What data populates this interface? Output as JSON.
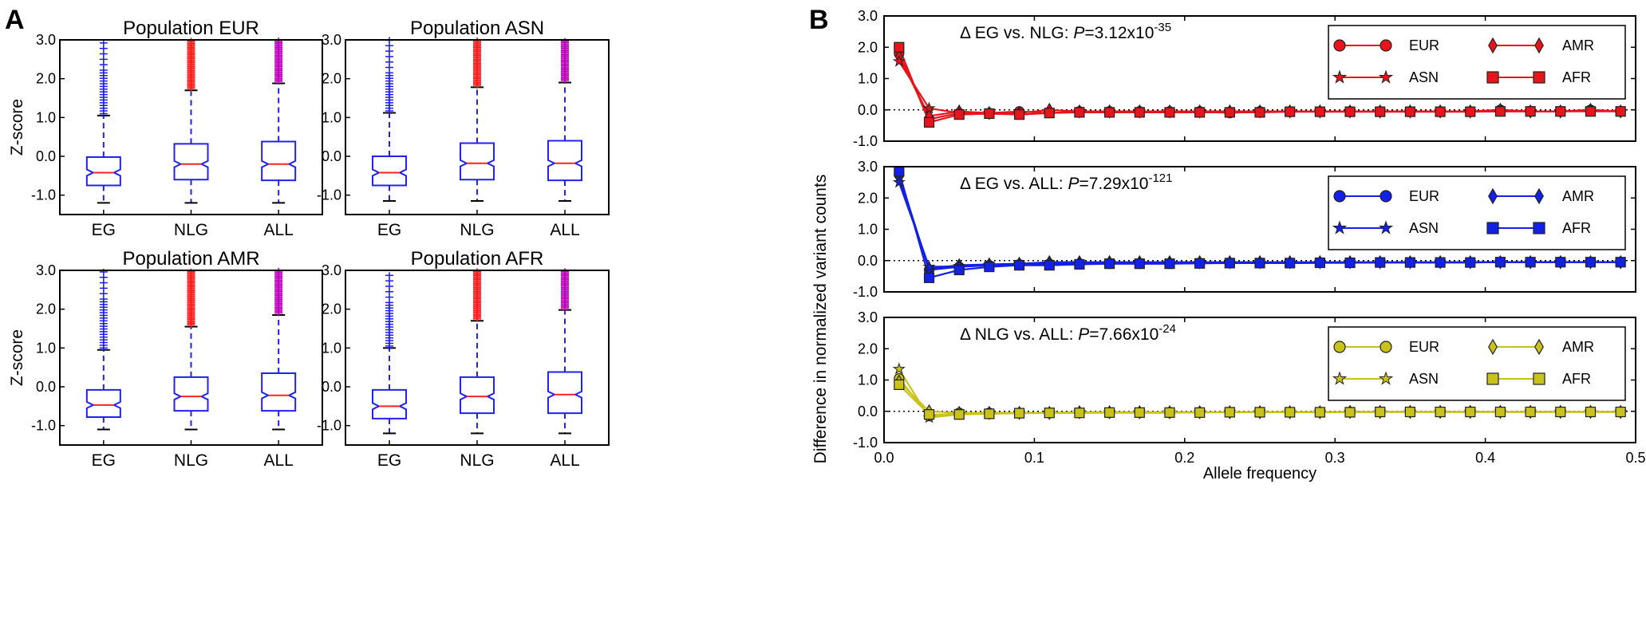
{
  "panel_labels": {
    "a": "A",
    "b": "B"
  },
  "colors": {
    "eg": "#1a1aff",
    "nlg": "#ff1a1a",
    "all": "#bf00bf",
    "box": "#2222ee",
    "median": "#ff2222",
    "cap": "#000000",
    "red": "#e8141b",
    "blue": "#1320e6",
    "yellow": "#c9c21a"
  },
  "chart_data": [
    {
      "type": "box",
      "title": "Population EUR",
      "ylabel": "Z-score",
      "categories": [
        "EG",
        "NLG",
        "ALL"
      ],
      "ylim": [
        -1.5,
        3.0
      ],
      "yticks": [
        "-1.0",
        "0.0",
        "1.0",
        "2.0",
        "3.0"
      ],
      "boxes": [
        {
          "label": "EG",
          "whisker_low": -1.2,
          "q1": -0.75,
          "median": -0.42,
          "q3": -0.02,
          "whisker_high": 1.05,
          "outliers_from": 1.05
        },
        {
          "label": "NLG",
          "whisker_low": -1.2,
          "q1": -0.6,
          "median": -0.2,
          "q3": 0.32,
          "whisker_high": 1.7,
          "outliers_from": 1.7
        },
        {
          "label": "ALL",
          "whisker_low": -1.2,
          "q1": -0.62,
          "median": -0.2,
          "q3": 0.38,
          "whisker_high": 1.88,
          "outliers_from": 1.88
        }
      ]
    },
    {
      "type": "box",
      "title": "Population ASN",
      "ylabel": "",
      "categories": [
        "EG",
        "NLG",
        "ALL"
      ],
      "ylim": [
        -1.5,
        3.0
      ],
      "yticks": [
        "-1.0",
        "0.0",
        "1.0",
        "2.0",
        "3.0"
      ],
      "boxes": [
        {
          "label": "EG",
          "whisker_low": -1.15,
          "q1": -0.75,
          "median": -0.42,
          "q3": 0.0,
          "whisker_high": 1.12,
          "outliers_from": 1.12
        },
        {
          "label": "NLG",
          "whisker_low": -1.15,
          "q1": -0.6,
          "median": -0.18,
          "q3": 0.34,
          "whisker_high": 1.78,
          "outliers_from": 1.78
        },
        {
          "label": "ALL",
          "whisker_low": -1.15,
          "q1": -0.62,
          "median": -0.18,
          "q3": 0.4,
          "whisker_high": 1.9,
          "outliers_from": 1.9
        }
      ]
    },
    {
      "type": "box",
      "title": "Population AMR",
      "ylabel": "Z-score",
      "categories": [
        "EG",
        "NLG",
        "ALL"
      ],
      "ylim": [
        -1.5,
        3.0
      ],
      "yticks": [
        "-1.0",
        "0.0",
        "1.0",
        "2.0",
        "3.0"
      ],
      "boxes": [
        {
          "label": "EG",
          "whisker_low": -1.1,
          "q1": -0.78,
          "median": -0.47,
          "q3": -0.08,
          "whisker_high": 0.95,
          "outliers_from": 0.95
        },
        {
          "label": "NLG",
          "whisker_low": -1.1,
          "q1": -0.62,
          "median": -0.25,
          "q3": 0.25,
          "whisker_high": 1.55,
          "outliers_from": 1.55
        },
        {
          "label": "ALL",
          "whisker_low": -1.1,
          "q1": -0.62,
          "median": -0.22,
          "q3": 0.35,
          "whisker_high": 1.85,
          "outliers_from": 1.85
        }
      ]
    },
    {
      "type": "box",
      "title": "Population AFR",
      "ylabel": "",
      "categories": [
        "EG",
        "NLG",
        "ALL"
      ],
      "ylim": [
        -1.5,
        3.0
      ],
      "yticks": [
        "-1.0",
        "0.0",
        "1.0",
        "2.0",
        "3.0"
      ],
      "boxes": [
        {
          "label": "EG",
          "whisker_low": -1.2,
          "q1": -0.82,
          "median": -0.5,
          "q3": -0.08,
          "whisker_high": 1.0,
          "outliers_from": 1.0
        },
        {
          "label": "NLG",
          "whisker_low": -1.2,
          "q1": -0.68,
          "median": -0.25,
          "q3": 0.25,
          "whisker_high": 1.7,
          "outliers_from": 1.7
        },
        {
          "label": "ALL",
          "whisker_low": -1.2,
          "q1": -0.68,
          "median": -0.2,
          "q3": 0.38,
          "whisker_high": 1.98,
          "outliers_from": 1.98
        }
      ]
    },
    {
      "type": "line",
      "annotation_prefix": "Δ EG vs. NLG: ",
      "annotation_p": "P",
      "annotation_value": "=3.12x10",
      "annotation_exp": "-35",
      "color_key": "red",
      "ylim": [
        -1.0,
        3.0
      ],
      "yticks": [
        "-1.0",
        "0.0",
        "1.0",
        "2.0",
        "3.0"
      ],
      "legend": [
        "EUR",
        "AMR",
        "ASN",
        "AFR"
      ],
      "x": [
        0.01,
        0.03,
        0.05,
        0.07,
        0.09,
        0.11,
        0.13,
        0.15,
        0.17,
        0.19,
        0.21,
        0.23,
        0.25,
        0.27,
        0.29,
        0.31,
        0.33,
        0.35,
        0.37,
        0.39,
        0.41,
        0.43,
        0.45,
        0.47,
        0.49
      ],
      "series": [
        {
          "name": "EUR",
          "marker": "circle",
          "values": [
            1.8,
            -0.3,
            -0.1,
            -0.1,
            -0.05,
            -0.1,
            -0.05,
            -0.05,
            -0.05,
            -0.05,
            -0.05,
            -0.1,
            -0.05,
            -0.05,
            -0.05,
            -0.05,
            -0.05,
            -0.05,
            -0.05,
            -0.05,
            0.0,
            -0.05,
            -0.05,
            0.0,
            -0.05
          ]
        },
        {
          "name": "AMR",
          "marker": "diamond",
          "values": [
            1.7,
            -0.2,
            -0.05,
            -0.1,
            -0.1,
            0.0,
            -0.05,
            -0.05,
            -0.05,
            -0.05,
            -0.05,
            -0.05,
            -0.05,
            -0.05,
            -0.05,
            -0.05,
            -0.05,
            -0.05,
            -0.05,
            -0.05,
            0.0,
            -0.05,
            -0.05,
            0.0,
            -0.05
          ]
        },
        {
          "name": "ASN",
          "marker": "star",
          "values": [
            1.55,
            0.05,
            -0.1,
            -0.1,
            -0.15,
            -0.1,
            -0.05,
            -0.05,
            -0.05,
            -0.05,
            -0.05,
            -0.05,
            -0.05,
            -0.05,
            -0.05,
            -0.05,
            -0.05,
            -0.05,
            -0.05,
            -0.05,
            -0.05,
            -0.05,
            -0.05,
            0.0,
            -0.05
          ]
        },
        {
          "name": "AFR",
          "marker": "square",
          "values": [
            2.0,
            -0.4,
            -0.15,
            -0.12,
            -0.15,
            -0.1,
            -0.08,
            -0.08,
            -0.08,
            -0.08,
            -0.08,
            -0.08,
            -0.08,
            -0.06,
            -0.06,
            -0.06,
            -0.06,
            -0.06,
            -0.06,
            -0.06,
            -0.05,
            -0.05,
            -0.05,
            -0.05,
            -0.05
          ]
        }
      ]
    },
    {
      "type": "line",
      "annotation_prefix": "Δ EG vs. ALL:  ",
      "annotation_p": "P",
      "annotation_value": "=7.29x10",
      "annotation_exp": "-121",
      "color_key": "blue",
      "ylim": [
        -1.0,
        3.0
      ],
      "yticks": [
        "-1.0",
        "0.0",
        "1.0",
        "2.0",
        "3.0"
      ],
      "legend": [
        "EUR",
        "AMR",
        "ASN",
        "AFR"
      ],
      "x": [
        0.01,
        0.03,
        0.05,
        0.07,
        0.09,
        0.11,
        0.13,
        0.15,
        0.17,
        0.19,
        0.21,
        0.23,
        0.25,
        0.27,
        0.29,
        0.31,
        0.33,
        0.35,
        0.37,
        0.39,
        0.41,
        0.43,
        0.45,
        0.47,
        0.49
      ],
      "series": [
        {
          "name": "EUR",
          "marker": "circle",
          "values": [
            2.75,
            -0.3,
            -0.2,
            -0.15,
            -0.12,
            -0.1,
            -0.1,
            -0.1,
            -0.1,
            -0.1,
            -0.08,
            -0.08,
            -0.08,
            -0.08,
            -0.07,
            -0.07,
            -0.06,
            -0.06,
            -0.06,
            -0.06,
            -0.05,
            -0.05,
            -0.05,
            -0.05,
            -0.05
          ]
        },
        {
          "name": "AMR",
          "marker": "diamond",
          "values": [
            2.65,
            -0.25,
            -0.15,
            -0.12,
            -0.1,
            -0.05,
            -0.05,
            -0.05,
            -0.05,
            -0.05,
            -0.05,
            -0.05,
            -0.05,
            -0.05,
            -0.05,
            -0.05,
            -0.05,
            -0.05,
            -0.05,
            -0.05,
            -0.05,
            -0.05,
            -0.05,
            -0.05,
            -0.05
          ]
        },
        {
          "name": "ASN",
          "marker": "star",
          "values": [
            2.5,
            -0.2,
            -0.18,
            -0.15,
            -0.12,
            -0.1,
            -0.08,
            -0.08,
            -0.08,
            -0.08,
            -0.08,
            -0.08,
            -0.08,
            -0.07,
            -0.07,
            -0.06,
            -0.06,
            -0.06,
            -0.06,
            -0.05,
            -0.05,
            -0.05,
            -0.05,
            -0.05,
            -0.05
          ]
        },
        {
          "name": "AFR",
          "marker": "square",
          "values": [
            2.85,
            -0.55,
            -0.3,
            -0.2,
            -0.15,
            -0.15,
            -0.12,
            -0.1,
            -0.1,
            -0.1,
            -0.09,
            -0.08,
            -0.08,
            -0.08,
            -0.07,
            -0.07,
            -0.06,
            -0.06,
            -0.06,
            -0.06,
            -0.05,
            -0.05,
            -0.05,
            -0.05,
            -0.05
          ]
        }
      ]
    },
    {
      "type": "line",
      "annotation_prefix": "Δ NLG vs. ALL: ",
      "annotation_p": "P",
      "annotation_value": "=7.66x10",
      "annotation_exp": "-24",
      "color_key": "yellow",
      "ylim": [
        -1.0,
        3.0
      ],
      "yticks": [
        "-1.0",
        "0.0",
        "1.0",
        "2.0",
        "3.0"
      ],
      "legend": [
        "EUR",
        "AMR",
        "ASN",
        "AFR"
      ],
      "xlabel": "Allele frequency",
      "xticks": [
        "0.0",
        "0.1",
        "0.2",
        "0.3",
        "0.4",
        "0.5"
      ],
      "x": [
        0.01,
        0.03,
        0.05,
        0.07,
        0.09,
        0.11,
        0.13,
        0.15,
        0.17,
        0.19,
        0.21,
        0.23,
        0.25,
        0.27,
        0.29,
        0.31,
        0.33,
        0.35,
        0.37,
        0.39,
        0.41,
        0.43,
        0.45,
        0.47,
        0.49
      ],
      "series": [
        {
          "name": "EUR",
          "marker": "circle",
          "values": [
            1.05,
            -0.15,
            -0.05,
            -0.05,
            -0.05,
            -0.05,
            -0.05,
            -0.05,
            -0.05,
            -0.05,
            -0.03,
            -0.03,
            -0.03,
            -0.03,
            -0.03,
            -0.02,
            -0.02,
            -0.02,
            -0.02,
            -0.02,
            -0.02,
            -0.02,
            -0.02,
            -0.02,
            -0.02
          ]
        },
        {
          "name": "AMR",
          "marker": "diamond",
          "values": [
            0.95,
            0.0,
            -0.05,
            -0.05,
            -0.05,
            -0.05,
            -0.03,
            -0.03,
            -0.03,
            -0.03,
            -0.03,
            -0.03,
            -0.03,
            -0.03,
            -0.03,
            -0.02,
            -0.02,
            -0.02,
            -0.02,
            -0.02,
            -0.02,
            -0.02,
            -0.02,
            -0.02,
            -0.02
          ]
        },
        {
          "name": "ASN",
          "marker": "star",
          "values": [
            1.35,
            -0.2,
            -0.1,
            -0.05,
            -0.05,
            -0.05,
            -0.03,
            -0.03,
            -0.03,
            -0.03,
            -0.03,
            -0.02,
            -0.02,
            -0.02,
            -0.02,
            -0.02,
            -0.02,
            -0.02,
            -0.02,
            -0.02,
            -0.02,
            -0.02,
            -0.02,
            -0.02,
            -0.02
          ]
        },
        {
          "name": "AFR",
          "marker": "square",
          "values": [
            0.85,
            -0.1,
            -0.1,
            -0.08,
            -0.06,
            -0.05,
            -0.05,
            -0.04,
            -0.04,
            -0.04,
            -0.04,
            -0.03,
            -0.03,
            -0.03,
            -0.03,
            -0.03,
            -0.02,
            -0.02,
            -0.02,
            -0.02,
            -0.02,
            -0.02,
            -0.02,
            -0.02,
            -0.02
          ]
        }
      ]
    }
  ],
  "shared_ylabel": "Difference in normalized variant counts"
}
